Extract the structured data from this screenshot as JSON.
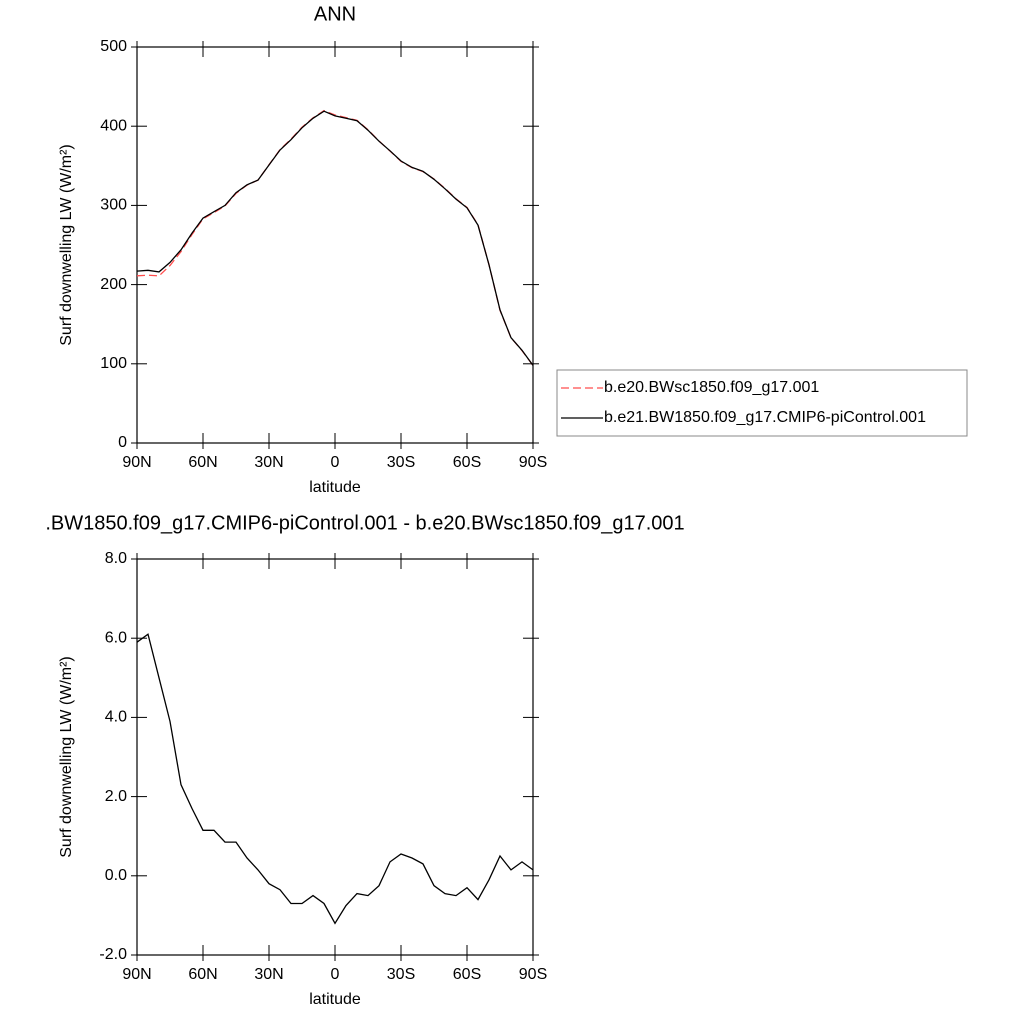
{
  "chart_data": [
    {
      "type": "line",
      "title": "ANN",
      "xlabel": "latitude",
      "ylabel": "Surf downwelling LW (W/m²)",
      "x": [
        90,
        85,
        80,
        75,
        70,
        65,
        60,
        55,
        50,
        45,
        40,
        35,
        30,
        25,
        20,
        15,
        10,
        5,
        0,
        -5,
        -10,
        -15,
        -20,
        -25,
        -30,
        -35,
        -40,
        -45,
        -50,
        -55,
        -60,
        -65,
        -70,
        -75,
        -80,
        -85,
        -90
      ],
      "xlim": [
        90,
        -90
      ],
      "xticks": [
        {
          "value": 90,
          "label": "90N"
        },
        {
          "value": 60,
          "label": "60N"
        },
        {
          "value": 30,
          "label": "30N"
        },
        0,
        {
          "value": -30,
          "label": "30S"
        },
        {
          "value": -60,
          "label": "60S"
        },
        {
          "value": -90,
          "label": "90S"
        }
      ],
      "ylim": [
        0,
        500
      ],
      "yticks": [
        0,
        100,
        200,
        300,
        400,
        500
      ],
      "legend": "outside right",
      "series": [
        {
          "name": "b.e20.BWsc1850.f09_g17.001",
          "color": "#ff4d4d",
          "dash": true,
          "values": [
            211.1,
            211.9,
            211,
            224.1,
            241.7,
            263.3,
            282.9,
            290.9,
            299.2,
            315.2,
            325.6,
            331.9,
            351.2,
            370.4,
            383.7,
            398.7,
            410.5,
            419.7,
            414.2,
            410.8,
            407.5,
            395.5,
            381.3,
            368.7,
            355.5,
            347.6,
            342.7,
            333.3,
            321.5,
            308.5,
            297.3,
            275.6,
            225.1,
            167.5,
            132.9,
            116.7,
            97.9
          ]
        },
        {
          "name": "b.e21.BW1850.f09_g17.CMIP6-piControl.001",
          "color": "#000000",
          "dash": false,
          "values": [
            217,
            218,
            216,
            228,
            244,
            265,
            284,
            292,
            300,
            316,
            326,
            332,
            351,
            370,
            383,
            398,
            410,
            419,
            413,
            410,
            407,
            395,
            381,
            369,
            356,
            348,
            343,
            333,
            321,
            308,
            297,
            275,
            225,
            168,
            133,
            117,
            98
          ]
        }
      ]
    },
    {
      "type": "line",
      "title": ".BW1850.f09_g17.CMIP6-piControl.001 - b.e20.BWsc1850.f09_g17.001",
      "xlabel": "latitude",
      "ylabel": "Surf downwelling LW (W/m²)",
      "x": [
        90,
        85,
        80,
        75,
        70,
        65,
        60,
        55,
        50,
        45,
        40,
        35,
        30,
        25,
        20,
        15,
        10,
        5,
        0,
        -5,
        -10,
        -15,
        -20,
        -25,
        -30,
        -35,
        -40,
        -45,
        -50,
        -55,
        -60,
        -65,
        -70,
        -75,
        -80,
        -85,
        -90
      ],
      "xlim": [
        90,
        -90
      ],
      "xticks": [
        {
          "value": 90,
          "label": "90N"
        },
        {
          "value": 60,
          "label": "60N"
        },
        {
          "value": 30,
          "label": "30N"
        },
        0,
        {
          "value": -30,
          "label": "30S"
        },
        {
          "value": -60,
          "label": "60S"
        },
        {
          "value": -90,
          "label": "90S"
        }
      ],
      "ylim": [
        -2,
        8
      ],
      "yticks": [
        {
          "value": -2,
          "label": "-2.0"
        },
        {
          "value": 0,
          "label": "0.0"
        },
        {
          "value": 2,
          "label": "2.0"
        },
        {
          "value": 4,
          "label": "4.0"
        },
        {
          "value": 6,
          "label": "6.0"
        },
        {
          "value": 8,
          "label": "8.0"
        }
      ],
      "series": [
        {
          "color": "#000000",
          "dash": false,
          "values": [
            5.9,
            6.1,
            5.0,
            3.9,
            2.3,
            1.7,
            1.15,
            1.15,
            0.85,
            0.85,
            0.45,
            0.15,
            -0.2,
            -0.35,
            -0.7,
            -0.7,
            -0.5,
            -0.7,
            -1.2,
            -0.75,
            -0.45,
            -0.5,
            -0.25,
            0.35,
            0.55,
            0.45,
            0.3,
            -0.25,
            -0.45,
            -0.5,
            -0.3,
            -0.6,
            -0.1,
            0.5,
            0.15,
            0.35,
            0.15
          ]
        }
      ]
    }
  ]
}
